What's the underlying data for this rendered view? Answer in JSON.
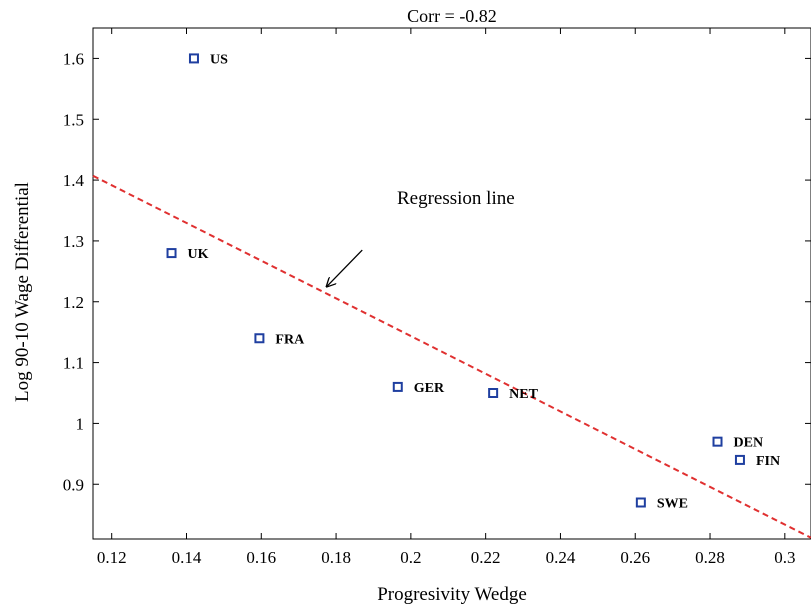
{
  "chart_data": {
    "type": "scatter",
    "title": "Corr = -0.82",
    "xlabel": "Progresivity Wedge",
    "ylabel": "Log 90-10 Wage Differential",
    "xlim": [
      0.115,
      0.307
    ],
    "ylim": [
      0.81,
      1.65
    ],
    "xticks": [
      0.12,
      0.14,
      0.16,
      0.18,
      0.2,
      0.22,
      0.24,
      0.26,
      0.28,
      0.3
    ],
    "xtick_labels": [
      "0.12",
      "0.14",
      "0.16",
      "0.18",
      "0.2",
      "0.22",
      "0.24",
      "0.26",
      "0.28",
      "0.3"
    ],
    "yticks": [
      0.9,
      1.0,
      1.1,
      1.2,
      1.3,
      1.4,
      1.5,
      1.6
    ],
    "ytick_labels": [
      "0.9",
      "1",
      "1.1",
      "1.2",
      "1.3",
      "1.4",
      "1.5",
      "1.6"
    ],
    "grid": false,
    "points": [
      {
        "label": "US",
        "x": 0.142,
        "y": 1.6
      },
      {
        "label": "UK",
        "x": 0.136,
        "y": 1.28
      },
      {
        "label": "FRA",
        "x": 0.1595,
        "y": 1.14
      },
      {
        "label": "GER",
        "x": 0.1965,
        "y": 1.06
      },
      {
        "label": "NET",
        "x": 0.222,
        "y": 1.05
      },
      {
        "label": "SWE",
        "x": 0.2615,
        "y": 0.87
      },
      {
        "label": "DEN",
        "x": 0.282,
        "y": 0.97
      },
      {
        "label": "FIN",
        "x": 0.288,
        "y": 0.94
      }
    ],
    "regression_line": {
      "x": [
        0.115,
        0.307
      ],
      "y": [
        1.407,
        0.812
      ]
    },
    "annotation": {
      "text": "Regression line",
      "arrow_from": [
        0.187,
        1.285
      ],
      "arrow_to": [
        0.1775,
        1.225
      ]
    },
    "colors": {
      "marker": "#1f3fa0",
      "line": "#e03030",
      "axis": "#000000"
    }
  }
}
